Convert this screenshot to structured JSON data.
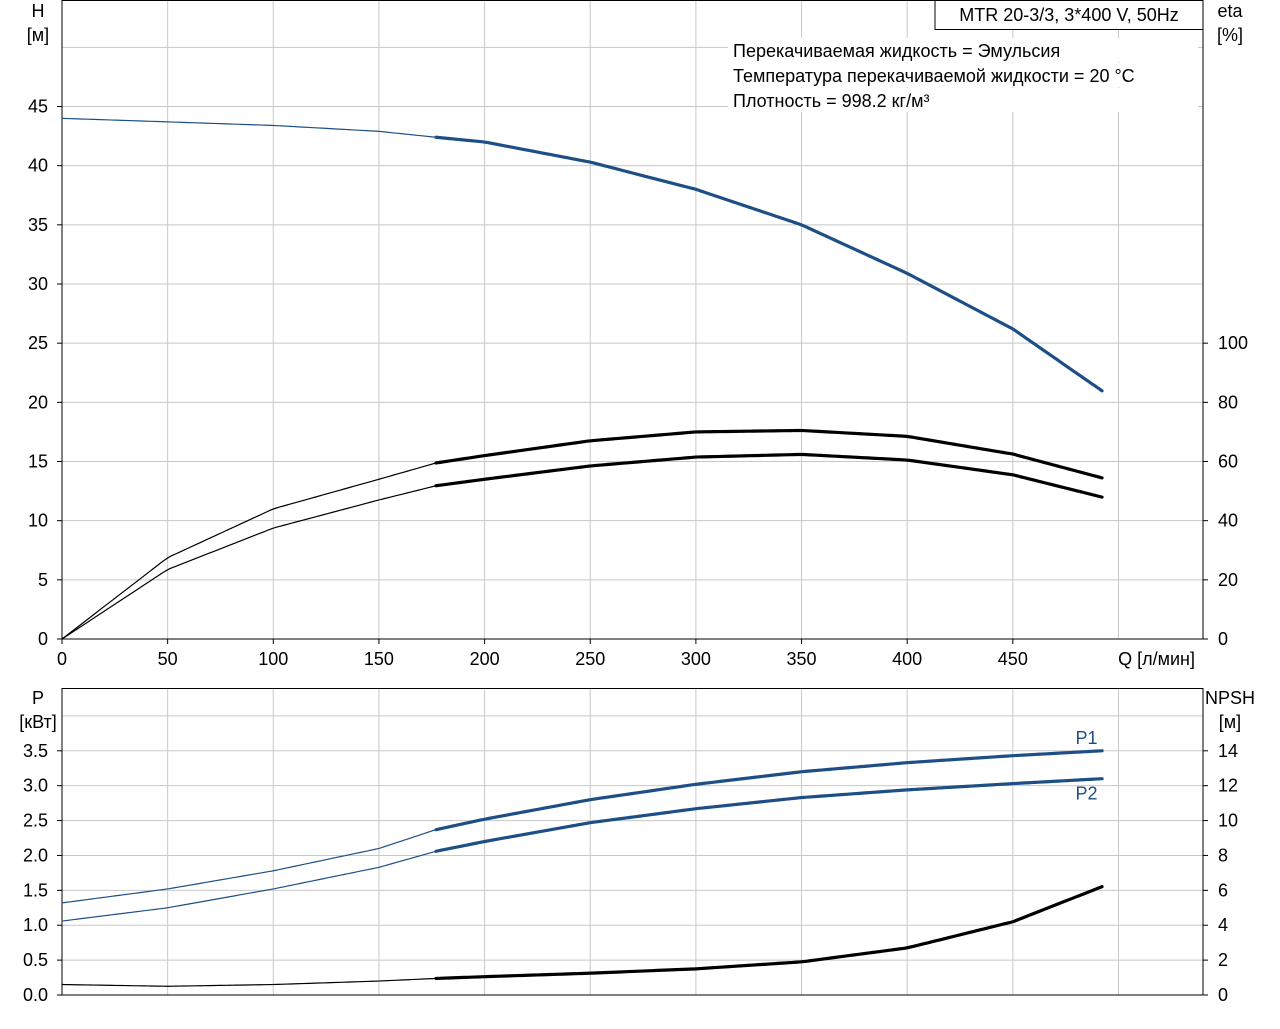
{
  "chart_data": [
    {
      "type": "line",
      "title": "MTR 20-3/3, 3*400 V, 50Hz",
      "info_lines": [
        "Перекачиваемая жидкость = Эмульсия",
        "Температура перекачиваемой жидкости = 20 °C",
        "Плотность = 998.2 кг/м³"
      ],
      "x_axis": {
        "label": "Q [л/мин]",
        "range": [
          0,
          540
        ],
        "ticks": [
          0,
          50,
          100,
          150,
          200,
          250,
          300,
          350,
          400,
          450
        ],
        "grid_step": 50
      },
      "y_left": {
        "label_line1": "H",
        "label_line2": "[м]",
        "range": [
          0,
          54
        ],
        "ticks": [
          0,
          5,
          10,
          15,
          20,
          25,
          30,
          35,
          40,
          45
        ],
        "grid_step": 5
      },
      "y_right": {
        "label_line1": "eta",
        "label_line2": "[%]",
        "range": [
          0,
          216
        ],
        "ticks": [
          0,
          20,
          40,
          60,
          80,
          100
        ]
      },
      "grid": true,
      "series": [
        {
          "axis": "left",
          "color": "#1d4f86",
          "duty_range": [
            177,
            492
          ],
          "x": [
            0,
            50,
            100,
            150,
            177,
            200,
            250,
            300,
            350,
            400,
            450,
            492
          ],
          "y": [
            44,
            43.7,
            43.4,
            42.9,
            42.4,
            42.0,
            40.3,
            38.0,
            35.0,
            30.9,
            26.2,
            21.0
          ]
        },
        {
          "axis": "right",
          "color": "#000000",
          "duty_range": [
            177,
            492
          ],
          "x": [
            0,
            50,
            100,
            150,
            177,
            200,
            250,
            300,
            350,
            400,
            450,
            492
          ],
          "y": [
            0,
            27.5,
            44,
            54,
            59.5,
            62,
            67,
            70,
            70.5,
            68.5,
            62.5,
            54.5
          ]
        },
        {
          "axis": "right",
          "color": "#000000",
          "duty_range": [
            177,
            492
          ],
          "x": [
            0,
            50,
            100,
            150,
            177,
            200,
            250,
            300,
            350,
            400,
            450,
            492
          ],
          "y": [
            0,
            23.5,
            37.5,
            47,
            51.8,
            54,
            58.5,
            61.5,
            62.4,
            60.5,
            55.5,
            48
          ]
        }
      ]
    },
    {
      "type": "line",
      "x_axis": {
        "range": [
          0,
          540
        ],
        "grid_step": 50
      },
      "y_left": {
        "label_line1": "P",
        "label_line2": "[кВт]",
        "range": [
          0,
          4.4
        ],
        "ticks": [
          "0.0",
          "0.5",
          "1.0",
          "1.5",
          "2.0",
          "2.5",
          "3.0",
          "3.5"
        ],
        "grid_step": 0.5
      },
      "y_right": {
        "label_line1": "NPSH",
        "label_line2": "[м]",
        "range": [
          0,
          17.6
        ],
        "ticks": [
          0,
          2,
          4,
          6,
          8,
          10,
          12,
          14
        ]
      },
      "grid": true,
      "series": [
        {
          "name": "P1",
          "axis": "left",
          "color": "#1d4f86",
          "duty_range": [
            177,
            492
          ],
          "x": [
            0,
            50,
            100,
            150,
            177,
            200,
            250,
            300,
            350,
            400,
            450,
            492
          ],
          "y": [
            1.32,
            1.52,
            1.78,
            2.1,
            2.37,
            2.52,
            2.8,
            3.02,
            3.2,
            3.33,
            3.43,
            3.5
          ]
        },
        {
          "name": "P2",
          "axis": "left",
          "color": "#1d4f86",
          "duty_range": [
            177,
            492
          ],
          "x": [
            0,
            50,
            100,
            150,
            177,
            200,
            250,
            300,
            350,
            400,
            450,
            492
          ],
          "y": [
            1.06,
            1.25,
            1.52,
            1.83,
            2.06,
            2.2,
            2.47,
            2.67,
            2.83,
            2.94,
            3.03,
            3.1
          ]
        },
        {
          "name": "NPSH",
          "axis": "right",
          "color": "#000000",
          "duty_range": [
            177,
            492
          ],
          "x": [
            0,
            50,
            100,
            150,
            177,
            200,
            250,
            300,
            350,
            400,
            450,
            492
          ],
          "y": [
            0.6,
            0.5,
            0.6,
            0.8,
            0.95,
            1.05,
            1.25,
            1.5,
            1.9,
            2.7,
            4.2,
            6.2
          ]
        }
      ]
    }
  ]
}
